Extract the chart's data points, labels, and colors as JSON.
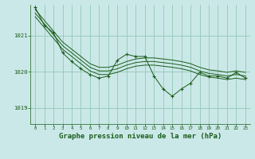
{
  "background_color": "#cbe8e8",
  "plot_bg_color": "#cbe8e8",
  "grid_color": "#99ccbb",
  "line_color": "#1a5c1a",
  "xlabel": "Graphe pression niveau de la mer (hPa)",
  "xlabel_fontsize": 6.5,
  "xticks": [
    0,
    1,
    2,
    3,
    4,
    5,
    6,
    7,
    8,
    9,
    10,
    11,
    12,
    13,
    14,
    15,
    16,
    17,
    18,
    19,
    20,
    21,
    22,
    23
  ],
  "yticks": [
    1019,
    1020,
    1021
  ],
  "ylim": [
    1018.55,
    1021.85
  ],
  "xlim": [
    -0.5,
    23.5
  ],
  "series_smooth": [
    [
      1021.72,
      1021.42,
      1021.12,
      1020.82,
      1020.62,
      1020.42,
      1020.22,
      1020.12,
      1020.12,
      1020.18,
      1020.28,
      1020.35,
      1020.38,
      1020.38,
      1020.35,
      1020.32,
      1020.28,
      1020.22,
      1020.12,
      1020.05,
      1020.02,
      1019.98,
      1020.02,
      1019.98
    ],
    [
      1021.62,
      1021.32,
      1021.02,
      1020.72,
      1020.52,
      1020.32,
      1020.12,
      1020.02,
      1020.02,
      1020.08,
      1020.18,
      1020.25,
      1020.28,
      1020.28,
      1020.25,
      1020.22,
      1020.18,
      1020.12,
      1020.02,
      1019.95,
      1019.92,
      1019.88,
      1019.92,
      1019.88
    ],
    [
      1021.52,
      1021.22,
      1020.92,
      1020.62,
      1020.42,
      1020.22,
      1020.02,
      1019.92,
      1019.92,
      1019.98,
      1020.08,
      1020.15,
      1020.18,
      1020.18,
      1020.15,
      1020.12,
      1020.08,
      1020.02,
      1019.92,
      1019.85,
      1019.82,
      1019.78,
      1019.82,
      1019.78
    ]
  ],
  "series_main": [
    1021.78,
    1021.28,
    1021.08,
    1020.52,
    1020.28,
    1020.08,
    1019.92,
    1019.82,
    1019.88,
    1020.32,
    1020.48,
    1020.42,
    1020.42,
    1019.88,
    1019.52,
    1019.32,
    1019.52,
    1019.68,
    1019.98,
    1019.88,
    1019.88,
    1019.82,
    1019.98,
    1019.82
  ]
}
